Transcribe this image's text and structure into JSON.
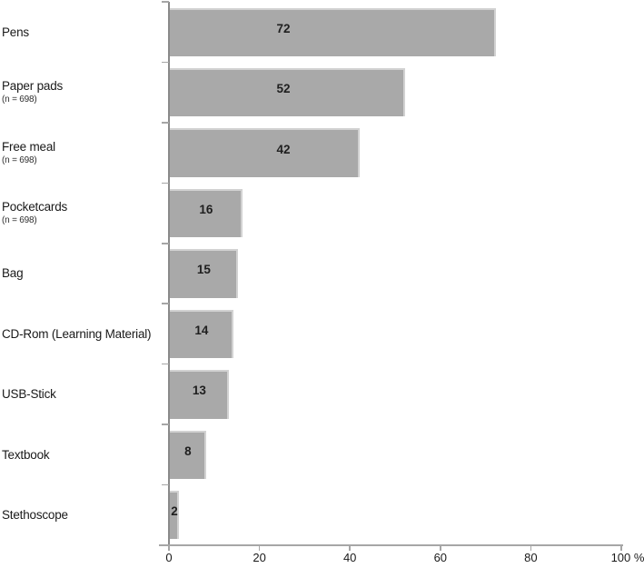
{
  "chart_data": {
    "type": "bar",
    "orientation": "horizontal",
    "title": "",
    "xlabel": "",
    "ylabel": "",
    "categories": [
      "Pens",
      "Paper pads",
      "Free meal",
      "Pocketcards",
      "Bag",
      "CD-Rom (Learning Material)",
      "USB-Stick",
      "Textbook",
      "Stethoscope"
    ],
    "category_subnotes": [
      "",
      "(n = 698)",
      "(n = 698)",
      "(n = 698)",
      "",
      "",
      "",
      "",
      ""
    ],
    "values": [
      72,
      52,
      42,
      16,
      15,
      14,
      13,
      8,
      2
    ],
    "value_unit": "%",
    "xlim": [
      0,
      100
    ],
    "x_tick_values": [
      0,
      20,
      40,
      60,
      80,
      100
    ],
    "x_tick_labels": [
      "0",
      "20",
      "40",
      "60",
      "80",
      "100 %"
    ],
    "grid": false,
    "legend": false,
    "colors": {
      "bar_fill": "#a9a9a9",
      "bar_edge": "#d2d2d2",
      "axis": "#8a8a8a",
      "tick": "#a6a6a6",
      "label_text": "#1a1a1a",
      "value_text": "#1f1f1f",
      "background": "#ffffff"
    }
  }
}
